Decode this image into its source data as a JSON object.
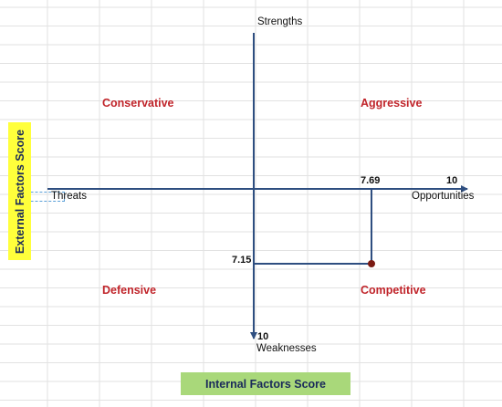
{
  "axes": {
    "top": "Strengths",
    "bottom": "Weaknesses",
    "left": "Threats",
    "right": "Opportunities"
  },
  "quadrants": {
    "top_left": "Conservative",
    "top_right": "Aggressive",
    "bottom_left": "Defensive",
    "bottom_right": "Competitive"
  },
  "ticks": {
    "x_point": "7.69",
    "x_max": "10",
    "y_point": "7.15",
    "y_max": "10"
  },
  "boxes": {
    "external": "External Factors Score",
    "internal": "Internal Factors Score"
  },
  "colors": {
    "axis": "#2e4e80",
    "quadrant_label": "#c0242a",
    "external_box": "#ffff3b",
    "internal_box": "#a9d87a",
    "point": "#7a1a12"
  }
}
